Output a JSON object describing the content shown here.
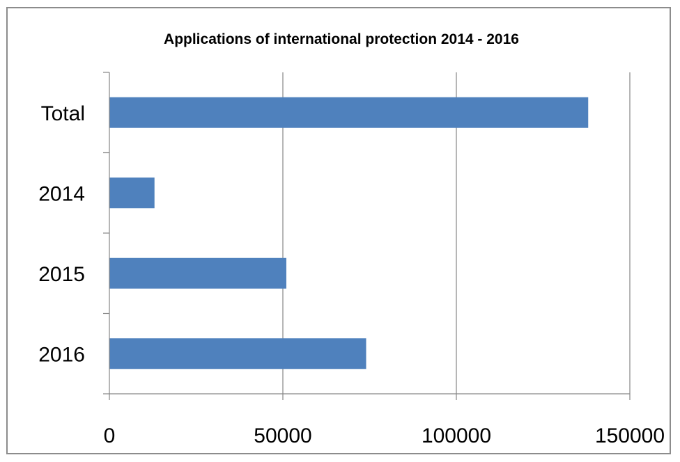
{
  "chart_data": {
    "type": "bar",
    "orientation": "horizontal",
    "title": "Applications of international protection 2014 - 2016",
    "categories": [
      "Total",
      "2014",
      "2015",
      "2016"
    ],
    "values": [
      138000,
      13000,
      51000,
      74000
    ],
    "xlabel": "",
    "ylabel": "",
    "xlim": [
      0,
      150000
    ],
    "x_ticks": [
      "0",
      "50000",
      "100000",
      "150000"
    ],
    "x_tick_values": [
      0,
      50000,
      100000,
      150000
    ],
    "grid": "vertical major gridlines",
    "legend": "none",
    "bar_color": "#4f81bd",
    "gridline_color": "#868686",
    "axis_color": "#868686",
    "frame_color": "#8c8c8c"
  }
}
